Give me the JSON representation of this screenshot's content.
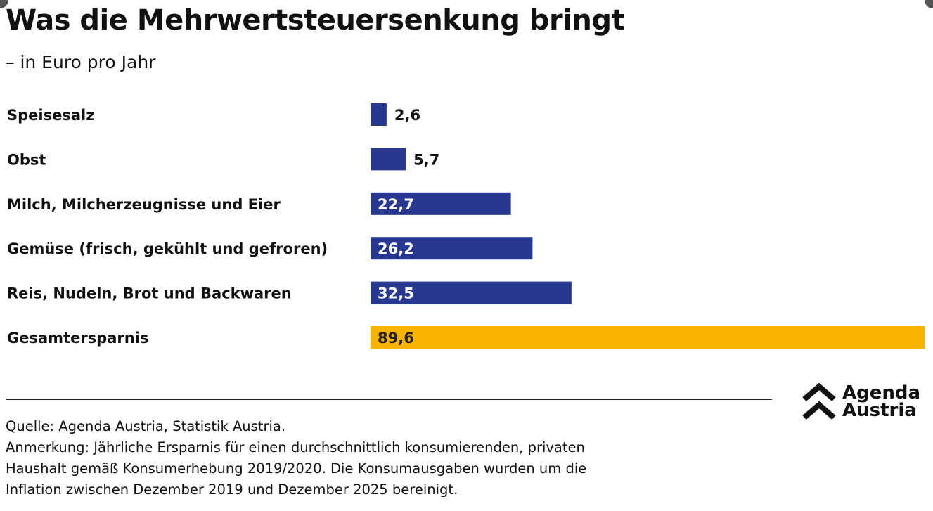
{
  "title": "Was die Mehrwertsteuersenkung bringt",
  "subtitle": "– in Euro pro Jahr",
  "chart_data": {
    "type": "bar",
    "orientation": "horizontal",
    "categories": [
      "Speisesalz",
      "Obst",
      "Milch, Milcherzeugnisse und Eier",
      "Gemüse (frisch, gekühlt und gefroren)",
      "Reis, Nudeln, Brot und Backwaren",
      "Gesamtersparnis"
    ],
    "values": [
      2.6,
      5.7,
      22.7,
      26.2,
      32.5,
      89.6
    ],
    "value_labels": [
      "2,6",
      "5,7",
      "22,7",
      "26,2",
      "32,5",
      "89,6"
    ],
    "colors": [
      "#283891",
      "#283891",
      "#283891",
      "#283891",
      "#283891",
      "#f8b400"
    ],
    "xlim": [
      0,
      89.6
    ],
    "grid": false,
    "title": "Was die Mehrwertsteuersenkung bringt",
    "xlabel": "",
    "ylabel": ""
  },
  "footer": {
    "source": "Quelle: Agenda Austria, Statistik Austria.",
    "note_lines": [
      "Anmerkung: Jährliche Ersparnis für einen durchschnittlich konsumierenden, privaten",
      "Haushalt gemäß Konsumerhebung 2019/2020. Die Konsumausgaben wurden um die",
      "Inflation zwischen Dezember 2019 und Dezember 2025 bereinigt."
    ]
  },
  "logo": {
    "line1": "Agenda",
    "line2": "Austria"
  }
}
